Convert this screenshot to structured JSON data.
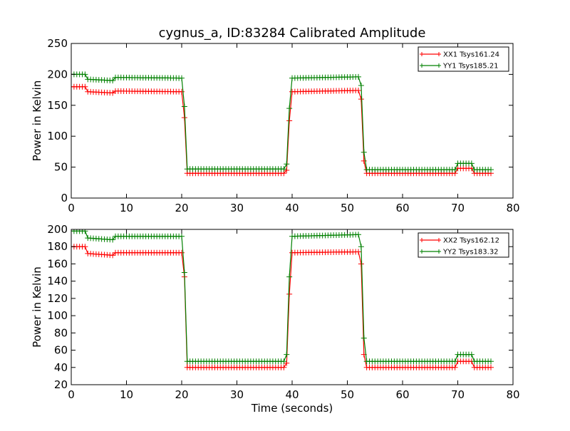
{
  "chart_data": {
    "type": "line",
    "title": "cygnus_a, ID:83284 Calibrated Amplitude",
    "xlabel": "Time (seconds)",
    "colors": {
      "red": "#ff0000",
      "green": "#008000"
    },
    "time_step": 0.5,
    "panels": [
      {
        "ylabel": "Power in Kelvin",
        "xlim": [
          0,
          80
        ],
        "ylim": [
          0,
          250
        ],
        "xticks": [
          "0",
          "10",
          "20",
          "30",
          "40",
          "50",
          "60",
          "70",
          "80"
        ],
        "yticks": [
          "0",
          "50",
          "100",
          "150",
          "200",
          "250"
        ],
        "legend": "top-right",
        "series": [
          {
            "name": "XX1 Tsys161.24",
            "color": "#ff0000",
            "segments": [
              [
                0,
                180
              ],
              [
                2.5,
                180
              ],
              [
                3,
                172
              ],
              [
                7.5,
                170
              ],
              [
                8,
                173
              ],
              [
                20,
                172
              ],
              [
                20.2,
                168
              ],
              [
                20.5,
                130
              ],
              [
                20.8,
                60
              ],
              [
                21,
                40
              ],
              [
                38.8,
                40
              ],
              [
                39,
                45
              ],
              [
                39.3,
                82
              ],
              [
                39.5,
                125
              ],
              [
                39.8,
                160
              ],
              [
                40,
                172
              ],
              [
                52,
                174
              ],
              [
                52.3,
                172
              ],
              [
                52.5,
                160
              ],
              [
                52.8,
                120
              ],
              [
                53,
                60
              ],
              [
                53.3,
                40
              ],
              [
                69.8,
                40
              ],
              [
                70,
                48
              ],
              [
                72.5,
                48
              ],
              [
                73,
                40
              ],
              [
                76,
                40
              ]
            ]
          },
          {
            "name": "YY1 Tsys185.21",
            "color": "#008000",
            "segments": [
              [
                0,
                200
              ],
              [
                2.5,
                200
              ],
              [
                3,
                192
              ],
              [
                7.5,
                190
              ],
              [
                8,
                195
              ],
              [
                20,
                194
              ],
              [
                20.2,
                190
              ],
              [
                20.5,
                148
              ],
              [
                20.8,
                64
              ],
              [
                21,
                47
              ],
              [
                38.8,
                47
              ],
              [
                39,
                55
              ],
              [
                39.3,
                97
              ],
              [
                39.5,
                145
              ],
              [
                39.8,
                182
              ],
              [
                40,
                194
              ],
              [
                52,
                196
              ],
              [
                52.3,
                194
              ],
              [
                52.5,
                182
              ],
              [
                52.8,
                140
              ],
              [
                53,
                74
              ],
              [
                53.3,
                46
              ],
              [
                69.8,
                46
              ],
              [
                70,
                56
              ],
              [
                72.5,
                56
              ],
              [
                73,
                46
              ],
              [
                76,
                46
              ]
            ]
          }
        ]
      },
      {
        "ylabel": "Power in Kelvin",
        "xlim": [
          0,
          80
        ],
        "ylim": [
          20,
          200
        ],
        "xticks": [
          "0",
          "10",
          "20",
          "30",
          "40",
          "50",
          "60",
          "70",
          "80"
        ],
        "yticks": [
          "20",
          "40",
          "60",
          "80",
          "100",
          "120",
          "140",
          "160",
          "180",
          "200"
        ],
        "legend": "top-right",
        "series": [
          {
            "name": "XX2 Tsys162.12",
            "color": "#ff0000",
            "segments": [
              [
                0,
                180
              ],
              [
                2.5,
                180
              ],
              [
                3,
                172
              ],
              [
                7.5,
                170
              ],
              [
                8,
                173
              ],
              [
                20,
                173
              ],
              [
                20.2,
                168
              ],
              [
                20.5,
                145
              ],
              [
                20.8,
                56
              ],
              [
                21,
                40
              ],
              [
                38.8,
                40
              ],
              [
                39,
                45
              ],
              [
                39.3,
                82
              ],
              [
                39.5,
                125
              ],
              [
                39.8,
                160
              ],
              [
                40,
                173
              ],
              [
                52,
                174
              ],
              [
                52.3,
                172
              ],
              [
                52.5,
                160
              ],
              [
                52.8,
                118
              ],
              [
                53,
                55
              ],
              [
                53.3,
                40
              ],
              [
                69.8,
                40
              ],
              [
                70,
                47
              ],
              [
                72.5,
                47
              ],
              [
                73,
                40
              ],
              [
                76,
                40
              ]
            ]
          },
          {
            "name": "YY2 Tsys183.32",
            "color": "#008000",
            "segments": [
              [
                0,
                198
              ],
              [
                2.5,
                198
              ],
              [
                3,
                190
              ],
              [
                7.5,
                188
              ],
              [
                8,
                192
              ],
              [
                20,
                192
              ],
              [
                20.2,
                188
              ],
              [
                20.5,
                150
              ],
              [
                20.8,
                64
              ],
              [
                21,
                47
              ],
              [
                38.8,
                47
              ],
              [
                39,
                55
              ],
              [
                39.3,
                97
              ],
              [
                39.5,
                145
              ],
              [
                39.8,
                180
              ],
              [
                40,
                192
              ],
              [
                52,
                194
              ],
              [
                52.3,
                192
              ],
              [
                52.5,
                180
              ],
              [
                52.8,
                140
              ],
              [
                53,
                74
              ],
              [
                53.3,
                47
              ],
              [
                69.8,
                47
              ],
              [
                70,
                55
              ],
              [
                72.5,
                55
              ],
              [
                73,
                47
              ],
              [
                76,
                47
              ]
            ]
          }
        ]
      }
    ]
  }
}
